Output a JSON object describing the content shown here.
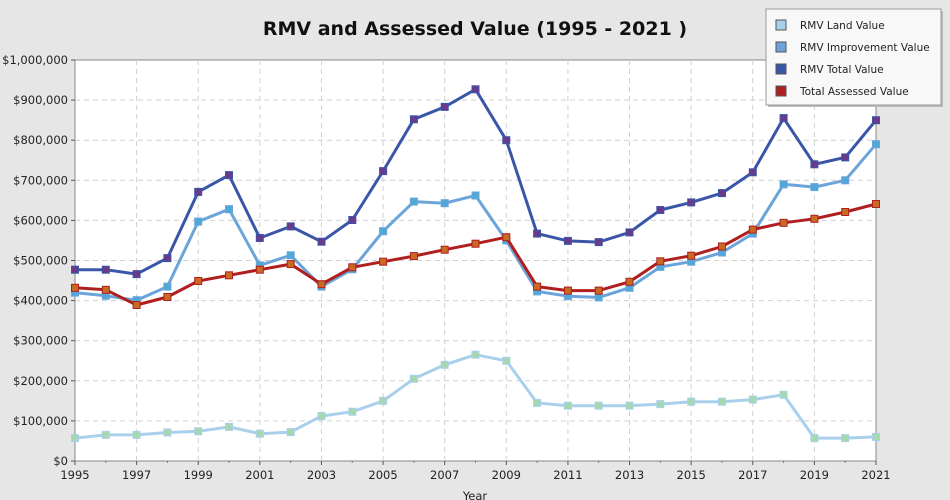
{
  "chart_data": {
    "type": "line",
    "title": "RMV and Assessed Value (1995 - 2021 )",
    "xlabel": "Year",
    "ylabel": "",
    "x": [
      1995,
      1996,
      1997,
      1998,
      1999,
      2000,
      2001,
      2002,
      2003,
      2004,
      2005,
      2006,
      2007,
      2008,
      2009,
      2010,
      2011,
      2012,
      2013,
      2014,
      2015,
      2016,
      2017,
      2018,
      2019,
      2020,
      2021
    ],
    "xticks": [
      "1995",
      "1997",
      "1999",
      "2001",
      "2003",
      "2005",
      "2007",
      "2009",
      "2011",
      "2013",
      "2015",
      "2017",
      "2019",
      "2021"
    ],
    "xlim": [
      1995,
      2021
    ],
    "ylim": [
      0,
      1000000
    ],
    "yticks": [
      "$0",
      "$100,000",
      "$200,000",
      "$300,000",
      "$400,000",
      "$500,000",
      "$600,000",
      "$700,000",
      "$800,000",
      "$900,000",
      "$1,000,000"
    ],
    "grid": true,
    "legend_position": "top-right",
    "series": [
      {
        "name": "RMV Land Value",
        "color": "#a8d0ec",
        "marker_color": "#a6d8b0",
        "values": [
          57000,
          65000,
          65000,
          71000,
          74000,
          85000,
          68000,
          72000,
          112000,
          123000,
          150000,
          205000,
          240000,
          265000,
          250000,
          145000,
          138000,
          138000,
          138000,
          142000,
          148000,
          148000,
          153000,
          165000,
          57000,
          57000,
          60000
        ]
      },
      {
        "name": "RMV Improvement Value",
        "color": "#6aa4d8",
        "marker_color": "#4fa8d8",
        "values": [
          420000,
          412000,
          401000,
          435000,
          597000,
          628000,
          488000,
          513000,
          435000,
          478000,
          573000,
          647000,
          643000,
          662000,
          550000,
          423000,
          411000,
          408000,
          432000,
          484000,
          497000,
          520000,
          567000,
          690000,
          683000,
          700000,
          790000
        ]
      },
      {
        "name": "RMV Total Value",
        "color": "#3a56a8",
        "marker_color": "#6a3a8a",
        "values": [
          477000,
          477000,
          466000,
          506000,
          671000,
          713000,
          556000,
          585000,
          547000,
          601000,
          723000,
          852000,
          883000,
          927000,
          800000,
          567000,
          549000,
          546000,
          570000,
          626000,
          645000,
          668000,
          720000,
          855000,
          740000,
          757000,
          850000
        ]
      },
      {
        "name": "Total Assessed Value",
        "color": "#b01e1e",
        "marker_color": "#c86a24",
        "values": [
          432000,
          427000,
          389000,
          409000,
          449000,
          463000,
          477000,
          491000,
          441000,
          483000,
          497000,
          511000,
          527000,
          542000,
          558000,
          435000,
          425000,
          425000,
          447000,
          498000,
          512000,
          535000,
          577000,
          594000,
          604000,
          621000,
          641000
        ]
      }
    ]
  }
}
